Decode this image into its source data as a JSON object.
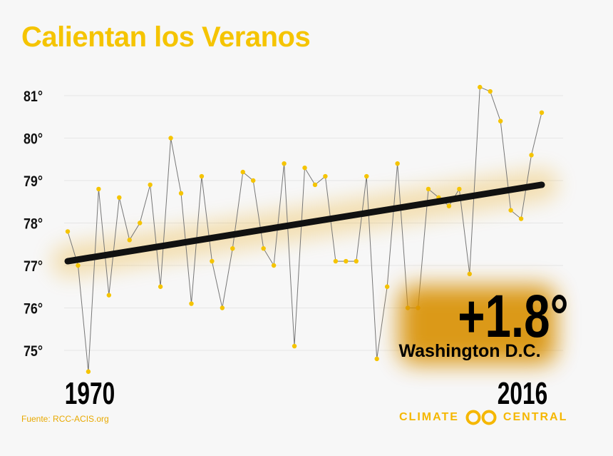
{
  "title": "Calientan los Veranos",
  "source": "Fuente: RCC-ACIS.org",
  "brand": {
    "left": "CLIMATE",
    "right": "CENTRAL",
    "icon": "climate-central-logo-icon"
  },
  "colors": {
    "accent": "#f5c400",
    "points": "#f5c400",
    "series_line": "#777777",
    "trend": "#111111",
    "glow": "#e8a100",
    "background": "#f7f7f7"
  },
  "chart_data": {
    "type": "line",
    "title": "Calientan los Veranos",
    "xlabel": "",
    "ylabel": "",
    "xlim": [
      1970,
      2016
    ],
    "ylim": [
      74.6,
      81.4
    ],
    "y_ticks": [
      75,
      76,
      77,
      78,
      79,
      80,
      81
    ],
    "y_tick_labels": [
      "75°",
      "76°",
      "77°",
      "78°",
      "79°",
      "80°",
      "81°"
    ],
    "x_labels": [
      "1970",
      "2016"
    ],
    "grid": true,
    "x": [
      1970,
      1971,
      1972,
      1973,
      1974,
      1975,
      1976,
      1977,
      1978,
      1979,
      1980,
      1981,
      1982,
      1983,
      1984,
      1985,
      1986,
      1987,
      1988,
      1989,
      1990,
      1991,
      1992,
      1993,
      1994,
      1995,
      1996,
      1997,
      1998,
      1999,
      2000,
      2001,
      2002,
      2003,
      2004,
      2005,
      2006,
      2007,
      2008,
      2009,
      2010,
      2011,
      2012,
      2013,
      2014,
      2015,
      2016
    ],
    "series": [
      {
        "values": [
          77.8,
          77.0,
          74.5,
          78.8,
          76.3,
          78.6,
          77.6,
          78.0,
          78.9,
          76.5,
          80.0,
          78.7,
          76.1,
          79.1,
          77.1,
          76.0,
          77.4,
          79.2,
          79.0,
          77.4,
          77.0,
          79.4,
          75.1,
          79.3,
          78.9,
          79.1,
          77.1,
          77.1,
          77.1,
          79.1,
          74.8,
          76.5,
          79.4,
          76.0,
          76.0,
          78.8,
          78.6,
          78.4,
          78.8,
          76.8,
          81.2,
          81.1,
          80.4,
          78.3,
          78.1,
          79.6,
          80.6
        ]
      }
    ],
    "trend": {
      "start": [
        1970,
        77.1
      ],
      "end": [
        2016,
        78.9
      ]
    },
    "annotation": {
      "value": "+1.8°",
      "location": "Washington D.C."
    }
  }
}
